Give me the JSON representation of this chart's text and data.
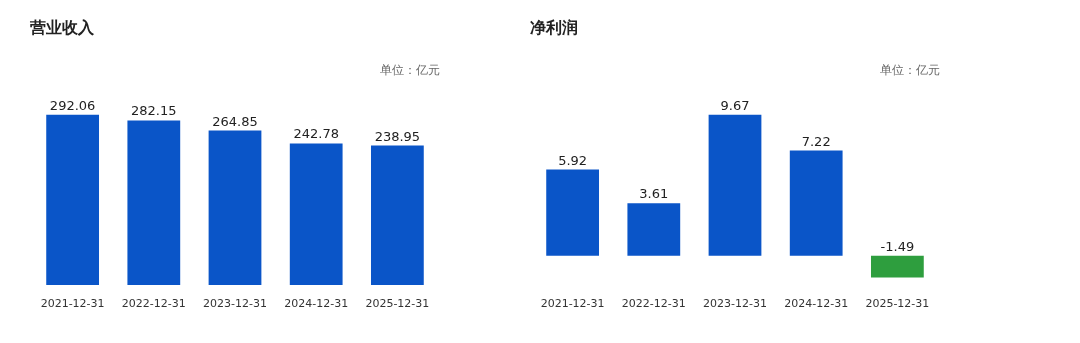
{
  "chart_data": [
    {
      "type": "bar",
      "title": "营业收入",
      "annotations": [
        "单位：亿元"
      ],
      "categories": [
        "2021-12-31",
        "2022-12-31",
        "2023-12-31",
        "2024-12-31",
        "2025-12-31"
      ],
      "values": [
        292.06,
        282.15,
        264.85,
        242.78,
        238.95
      ],
      "colors": [
        "#0a55c8",
        "#0a55c8",
        "#0a55c8",
        "#0a55c8",
        "#0a55c8"
      ],
      "data_labels": true,
      "grid": false
    },
    {
      "type": "bar",
      "title": "净利润",
      "annotations": [
        "单位：亿元"
      ],
      "categories": [
        "2021-12-31",
        "2022-12-31",
        "2023-12-31",
        "2024-12-31",
        "2025-12-31"
      ],
      "values": [
        5.92,
        3.61,
        9.67,
        7.22,
        -1.49
      ],
      "colors": [
        "#0a55c8",
        "#0a55c8",
        "#0a55c8",
        "#0a55c8",
        "#2e9e3e"
      ],
      "data_labels": true,
      "grid": false
    }
  ]
}
